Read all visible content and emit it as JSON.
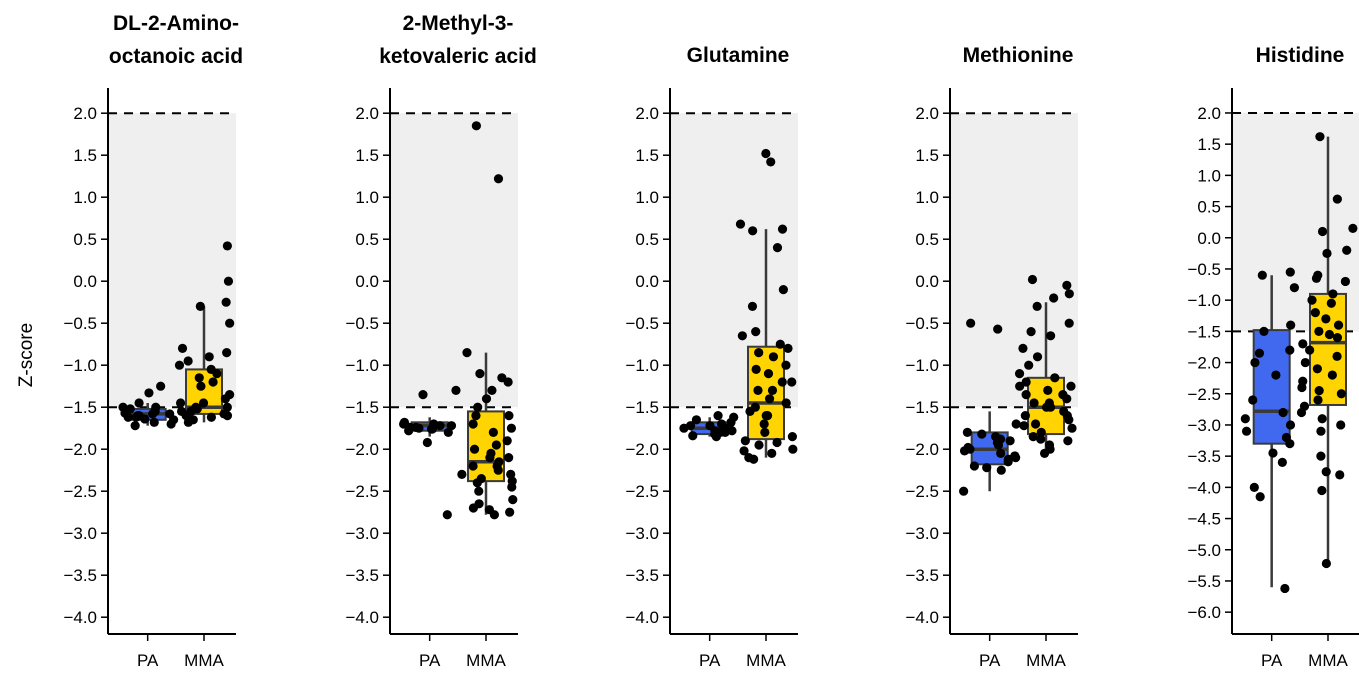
{
  "figure": {
    "ylabel": "Z-score",
    "categories": [
      "PA",
      "MMA"
    ],
    "colors": {
      "PA": "#4169f0",
      "MMA": "#ffd400",
      "shade": "#efefef",
      "point": "#000000"
    },
    "reference_lines": [
      2.0,
      -1.5
    ]
  },
  "chart_data": [
    {
      "type": "box",
      "title_lines": [
        "DL-2-Amino-",
        "octanoic acid"
      ],
      "ylim": [
        -4.2,
        2.3
      ],
      "yticks": [
        2.0,
        1.5,
        1.0,
        0.5,
        0.0,
        -0.5,
        -1.0,
        -1.5,
        -2.0,
        -2.5,
        -3.0,
        -3.5,
        -4.0
      ],
      "shaded_band": [
        -1.5,
        2.0
      ],
      "boxes": [
        {
          "category": "PA",
          "q1": -1.65,
          "median": -1.58,
          "q3": -1.52,
          "whisker_low": -1.72,
          "whisker_high": -1.45
        },
        {
          "category": "MMA",
          "q1": -1.58,
          "median": -1.5,
          "q3": -1.05,
          "whisker_low": -1.68,
          "whisker_high": -0.3
        }
      ],
      "points": {
        "PA": [
          -1.25,
          -1.33,
          -1.45,
          -1.5,
          -1.52,
          -1.55,
          -1.57,
          -1.58,
          -1.6,
          -1.62,
          -1.64,
          -1.65,
          -1.68,
          -1.7,
          -1.72,
          -1.5,
          -1.55,
          -1.6,
          -1.58,
          -1.62
        ],
        "MMA": [
          0.42,
          0.0,
          -0.25,
          -0.3,
          -0.5,
          -0.8,
          -0.85,
          -0.9,
          -0.95,
          -1.0,
          -1.05,
          -1.1,
          -1.15,
          -1.2,
          -1.25,
          -1.35,
          -1.4,
          -1.45,
          -1.5,
          -1.52,
          -1.55,
          -1.58,
          -1.6,
          -1.62,
          -1.65,
          -1.68,
          -1.5,
          -1.55,
          -1.45,
          -1.6
        ]
      }
    },
    {
      "type": "box",
      "title_lines": [
        "2-Methyl-3-",
        "ketovaleric acid"
      ],
      "ylim": [
        -4.2,
        2.3
      ],
      "yticks": [
        2.0,
        1.5,
        1.0,
        0.5,
        0.0,
        -0.5,
        -1.0,
        -1.5,
        -2.0,
        -2.5,
        -3.0,
        -3.5,
        -4.0
      ],
      "shaded_band": [
        -1.5,
        2.0
      ],
      "boxes": [
        {
          "category": "PA",
          "q1": -1.78,
          "median": -1.72,
          "q3": -1.68,
          "whisker_low": -1.85,
          "whisker_high": -1.62
        },
        {
          "category": "MMA",
          "q1": -2.38,
          "median": -2.15,
          "q3": -1.55,
          "whisker_low": -2.78,
          "whisker_high": -0.85
        }
      ],
      "points": {
        "PA": [
          -1.3,
          -1.35,
          -1.68,
          -1.7,
          -1.72,
          -1.74,
          -1.75,
          -1.76,
          -1.78,
          -1.8,
          -1.72,
          -1.74,
          -1.7,
          -1.76,
          -1.92,
          -2.78
        ],
        "MMA": [
          1.85,
          1.22,
          -0.85,
          -1.1,
          -1.15,
          -1.2,
          -1.3,
          -1.4,
          -1.5,
          -1.6,
          -1.7,
          -1.8,
          -1.9,
          -2.0,
          -2.05,
          -2.1,
          -2.15,
          -2.2,
          -2.25,
          -2.3,
          -2.35,
          -2.38,
          -2.4,
          -2.45,
          -2.5,
          -2.6,
          -2.65,
          -2.7,
          -2.72,
          -2.75,
          -2.78,
          -1.95,
          -2.1,
          -2.2,
          -2.3,
          -1.6,
          -1.75
        ]
      }
    },
    {
      "type": "box",
      "title_lines": [
        "Glutamine"
      ],
      "ylim": [
        -4.2,
        2.3
      ],
      "yticks": [
        2.0,
        1.5,
        1.0,
        0.5,
        0.0,
        -0.5,
        -1.0,
        -1.5,
        -2.0,
        -2.5,
        -3.0,
        -3.5,
        -4.0
      ],
      "shaded_band": [
        -1.5,
        2.0
      ],
      "boxes": [
        {
          "category": "PA",
          "q1": -1.82,
          "median": -1.75,
          "q3": -1.68,
          "whisker_low": -1.85,
          "whisker_high": -1.62
        },
        {
          "category": "MMA",
          "q1": -1.88,
          "median": -1.45,
          "q3": -0.78,
          "whisker_low": -2.1,
          "whisker_high": 0.62
        }
      ],
      "points": {
        "PA": [
          -1.6,
          -1.62,
          -1.65,
          -1.68,
          -1.7,
          -1.72,
          -1.75,
          -1.78,
          -1.8,
          -1.82,
          -1.84,
          -1.85,
          -1.75,
          -1.8,
          -1.78,
          -1.72
        ],
        "MMA": [
          1.52,
          1.42,
          0.68,
          0.62,
          0.6,
          0.4,
          -0.1,
          -0.3,
          -0.6,
          -0.65,
          -0.8,
          -0.85,
          -0.9,
          -1.0,
          -1.05,
          -1.1,
          -1.2,
          -1.3,
          -1.4,
          -1.45,
          -1.5,
          -1.55,
          -1.6,
          -1.7,
          -1.8,
          -1.85,
          -1.9,
          -1.95,
          -2.0,
          -2.05,
          -2.1,
          -2.12,
          -1.6,
          -1.3,
          -1.2,
          -2.02,
          -1.92,
          -0.75
        ]
      }
    },
    {
      "type": "box",
      "title_lines": [
        "Methionine"
      ],
      "ylim": [
        -4.2,
        2.3
      ],
      "yticks": [
        2.0,
        1.5,
        1.0,
        0.5,
        0.0,
        -0.5,
        -1.0,
        -1.5,
        -2.0,
        -2.5,
        -3.0,
        -3.5,
        -4.0
      ],
      "shaded_band": [
        -1.5,
        2.0
      ],
      "boxes": [
        {
          "category": "PA",
          "q1": -2.18,
          "median": -2.0,
          "q3": -1.8,
          "whisker_low": -2.5,
          "whisker_high": -1.55
        },
        {
          "category": "MMA",
          "q1": -1.82,
          "median": -1.5,
          "q3": -1.15,
          "whisker_low": -2.05,
          "whisker_high": -0.25
        }
      ],
      "points": {
        "PA": [
          -0.5,
          -0.57,
          -1.8,
          -1.85,
          -1.9,
          -1.95,
          -2.0,
          -2.05,
          -2.1,
          -2.15,
          -2.2,
          -2.25,
          -2.5,
          -1.82,
          -1.98,
          -2.08,
          -1.92,
          -2.12,
          -1.7,
          -2.22,
          -1.88,
          -2.02
        ],
        "MMA": [
          0.02,
          -0.05,
          -0.15,
          -0.2,
          -0.3,
          -0.5,
          -0.6,
          -0.65,
          -0.8,
          -0.9,
          -1.0,
          -1.1,
          -1.15,
          -1.2,
          -1.25,
          -1.3,
          -1.35,
          -1.4,
          -1.45,
          -1.5,
          -1.55,
          -1.6,
          -1.65,
          -1.7,
          -1.75,
          -1.8,
          -1.85,
          -1.9,
          -1.95,
          -2.0,
          -2.05,
          -1.45,
          -1.6,
          -1.25,
          -1.35,
          -1.5,
          -1.72,
          -1.88
        ]
      }
    },
    {
      "type": "box",
      "title_lines": [
        "Histidine"
      ],
      "ylim": [
        -6.35,
        2.4
      ],
      "yticks": [
        2.0,
        1.5,
        1.0,
        0.5,
        0.0,
        -0.5,
        -1.0,
        -1.5,
        -2.0,
        -2.5,
        -3.0,
        -3.5,
        -4.0,
        -4.5,
        -5.0,
        -5.5,
        -6.0
      ],
      "shaded_band": [
        -1.5,
        2.0
      ],
      "boxes": [
        {
          "category": "PA",
          "q1": -3.3,
          "median": -2.78,
          "q3": -1.48,
          "whisker_low": -5.6,
          "whisker_high": -0.6
        },
        {
          "category": "MMA",
          "q1": -2.68,
          "median": -1.68,
          "q3": -0.9,
          "whisker_low": -5.2,
          "whisker_high": 1.62
        }
      ],
      "points": {
        "PA": [
          -0.55,
          -0.6,
          -0.8,
          -1.4,
          -1.8,
          -1.85,
          -2.0,
          -2.6,
          -2.8,
          -2.9,
          -3.0,
          -3.2,
          -3.3,
          -3.45,
          -3.6,
          -4.0,
          -4.15,
          -5.62,
          -1.5,
          -2.2,
          -3.1
        ],
        "MMA": [
          1.62,
          0.62,
          0.15,
          0.1,
          -0.2,
          -0.25,
          -0.6,
          -0.7,
          -0.9,
          -1.0,
          -1.2,
          -1.3,
          -1.4,
          -1.5,
          -1.6,
          -1.7,
          -1.8,
          -1.9,
          -2.0,
          -2.1,
          -2.2,
          -2.3,
          -2.4,
          -2.5,
          -2.6,
          -2.7,
          -2.8,
          -2.9,
          -3.0,
          -3.1,
          -3.5,
          -3.75,
          -3.8,
          -4.05,
          -5.22,
          -0.65,
          -1.05,
          -1.55,
          -2.45
        ]
      }
    }
  ]
}
